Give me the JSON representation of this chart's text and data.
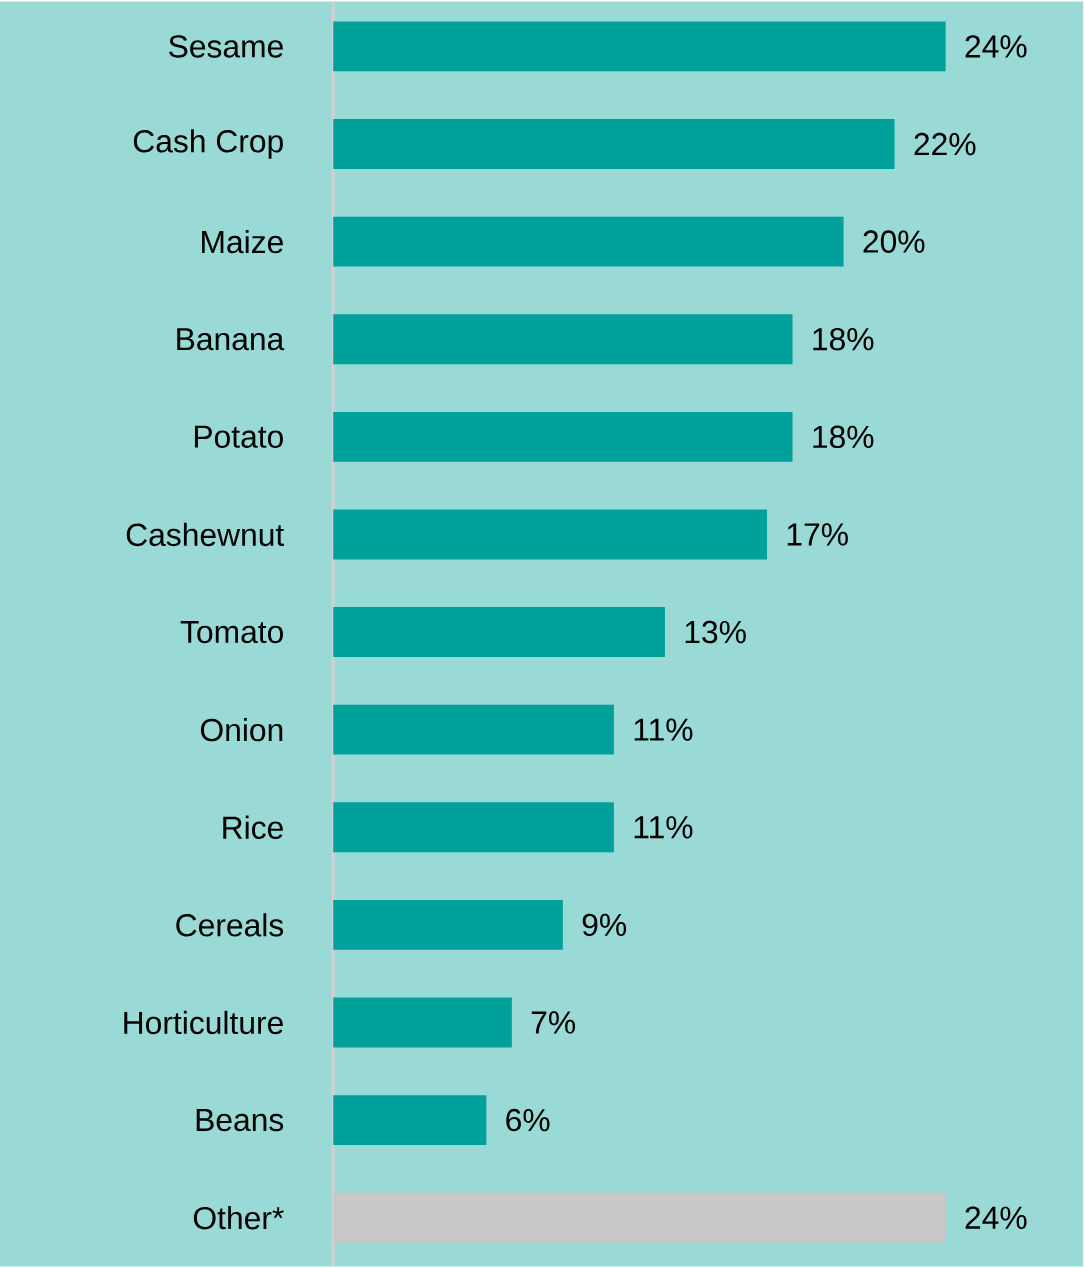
{
  "chart_data": {
    "type": "bar",
    "orientation": "horizontal",
    "categories": [
      "Sesame",
      "Cash Crop",
      "Maize",
      "Banana",
      "Potato",
      "Cashewnut",
      "Tomato",
      "Onion",
      "Rice",
      "Cereals",
      "Horticulture",
      "Beans",
      "Other*"
    ],
    "values": [
      24,
      22,
      20,
      18,
      18,
      17,
      13,
      11,
      11,
      9,
      7,
      6,
      24
    ],
    "value_labels": [
      "24%",
      "22%",
      "20%",
      "18%",
      "18%",
      "17%",
      "13%",
      "11%",
      "11%",
      "9%",
      "7%",
      "6%",
      "24%"
    ],
    "colors": [
      "#00a19a",
      "#00a19a",
      "#00a19a",
      "#00a19a",
      "#00a19a",
      "#00a19a",
      "#00a19a",
      "#00a19a",
      "#00a19a",
      "#00a19a",
      "#00a19a",
      "#00a19a",
      "#c8c8c8"
    ],
    "xlim": [
      0,
      29.4
    ]
  }
}
